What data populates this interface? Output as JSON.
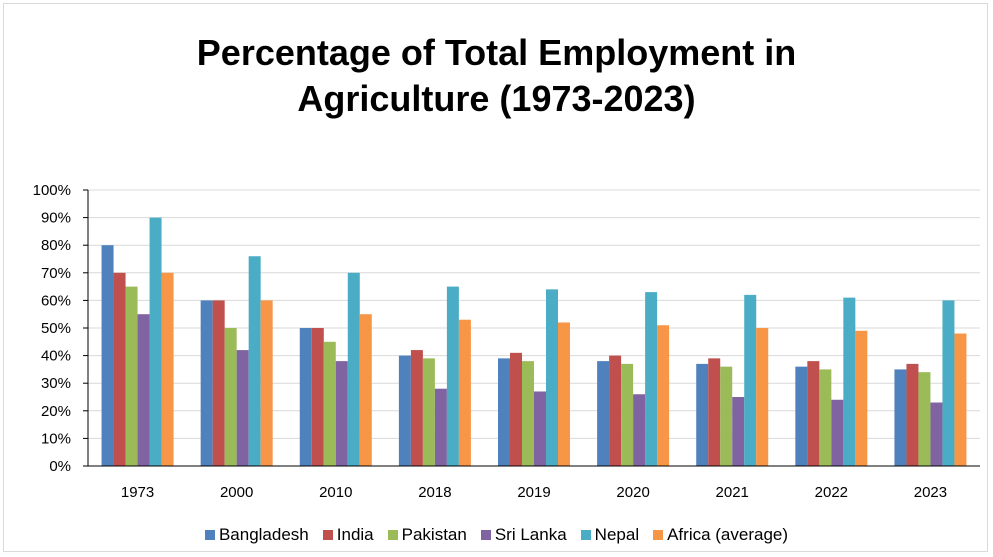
{
  "chart_data": {
    "type": "bar",
    "title_lines": [
      "Percentage of Total Employment in",
      "Agriculture (1973-2023)"
    ],
    "categories": [
      "1973",
      "2000",
      "2010",
      "2018",
      "2019",
      "2020",
      "2021",
      "2022",
      "2023"
    ],
    "y_ticks": [
      "0%",
      "10%",
      "20%",
      "30%",
      "40%",
      "50%",
      "60%",
      "70%",
      "80%",
      "90%",
      "100%"
    ],
    "ylim": [
      0,
      100
    ],
    "y_unit": "%",
    "grid": true,
    "legend_position": "bottom",
    "series": [
      {
        "name": "Bangladesh",
        "color": "#4F81BD",
        "values": [
          80,
          60,
          50,
          40,
          39,
          38,
          37,
          36,
          35
        ]
      },
      {
        "name": "India",
        "color": "#C0504D",
        "values": [
          70,
          60,
          50,
          42,
          41,
          40,
          39,
          38,
          37
        ]
      },
      {
        "name": "Pakistan",
        "color": "#9BBB59",
        "values": [
          65,
          50,
          45,
          39,
          38,
          37,
          36,
          35,
          34
        ]
      },
      {
        "name": "Sri Lanka",
        "color": "#8064A2",
        "values": [
          55,
          42,
          38,
          28,
          27,
          26,
          25,
          24,
          23
        ]
      },
      {
        "name": "Nepal",
        "color": "#4BACC6",
        "values": [
          90,
          76,
          70,
          65,
          64,
          63,
          62,
          61,
          60
        ]
      },
      {
        "name": "Africa (average)",
        "color": "#F79646",
        "values": [
          70,
          60,
          55,
          53,
          52,
          51,
          50,
          49,
          48
        ]
      }
    ]
  }
}
